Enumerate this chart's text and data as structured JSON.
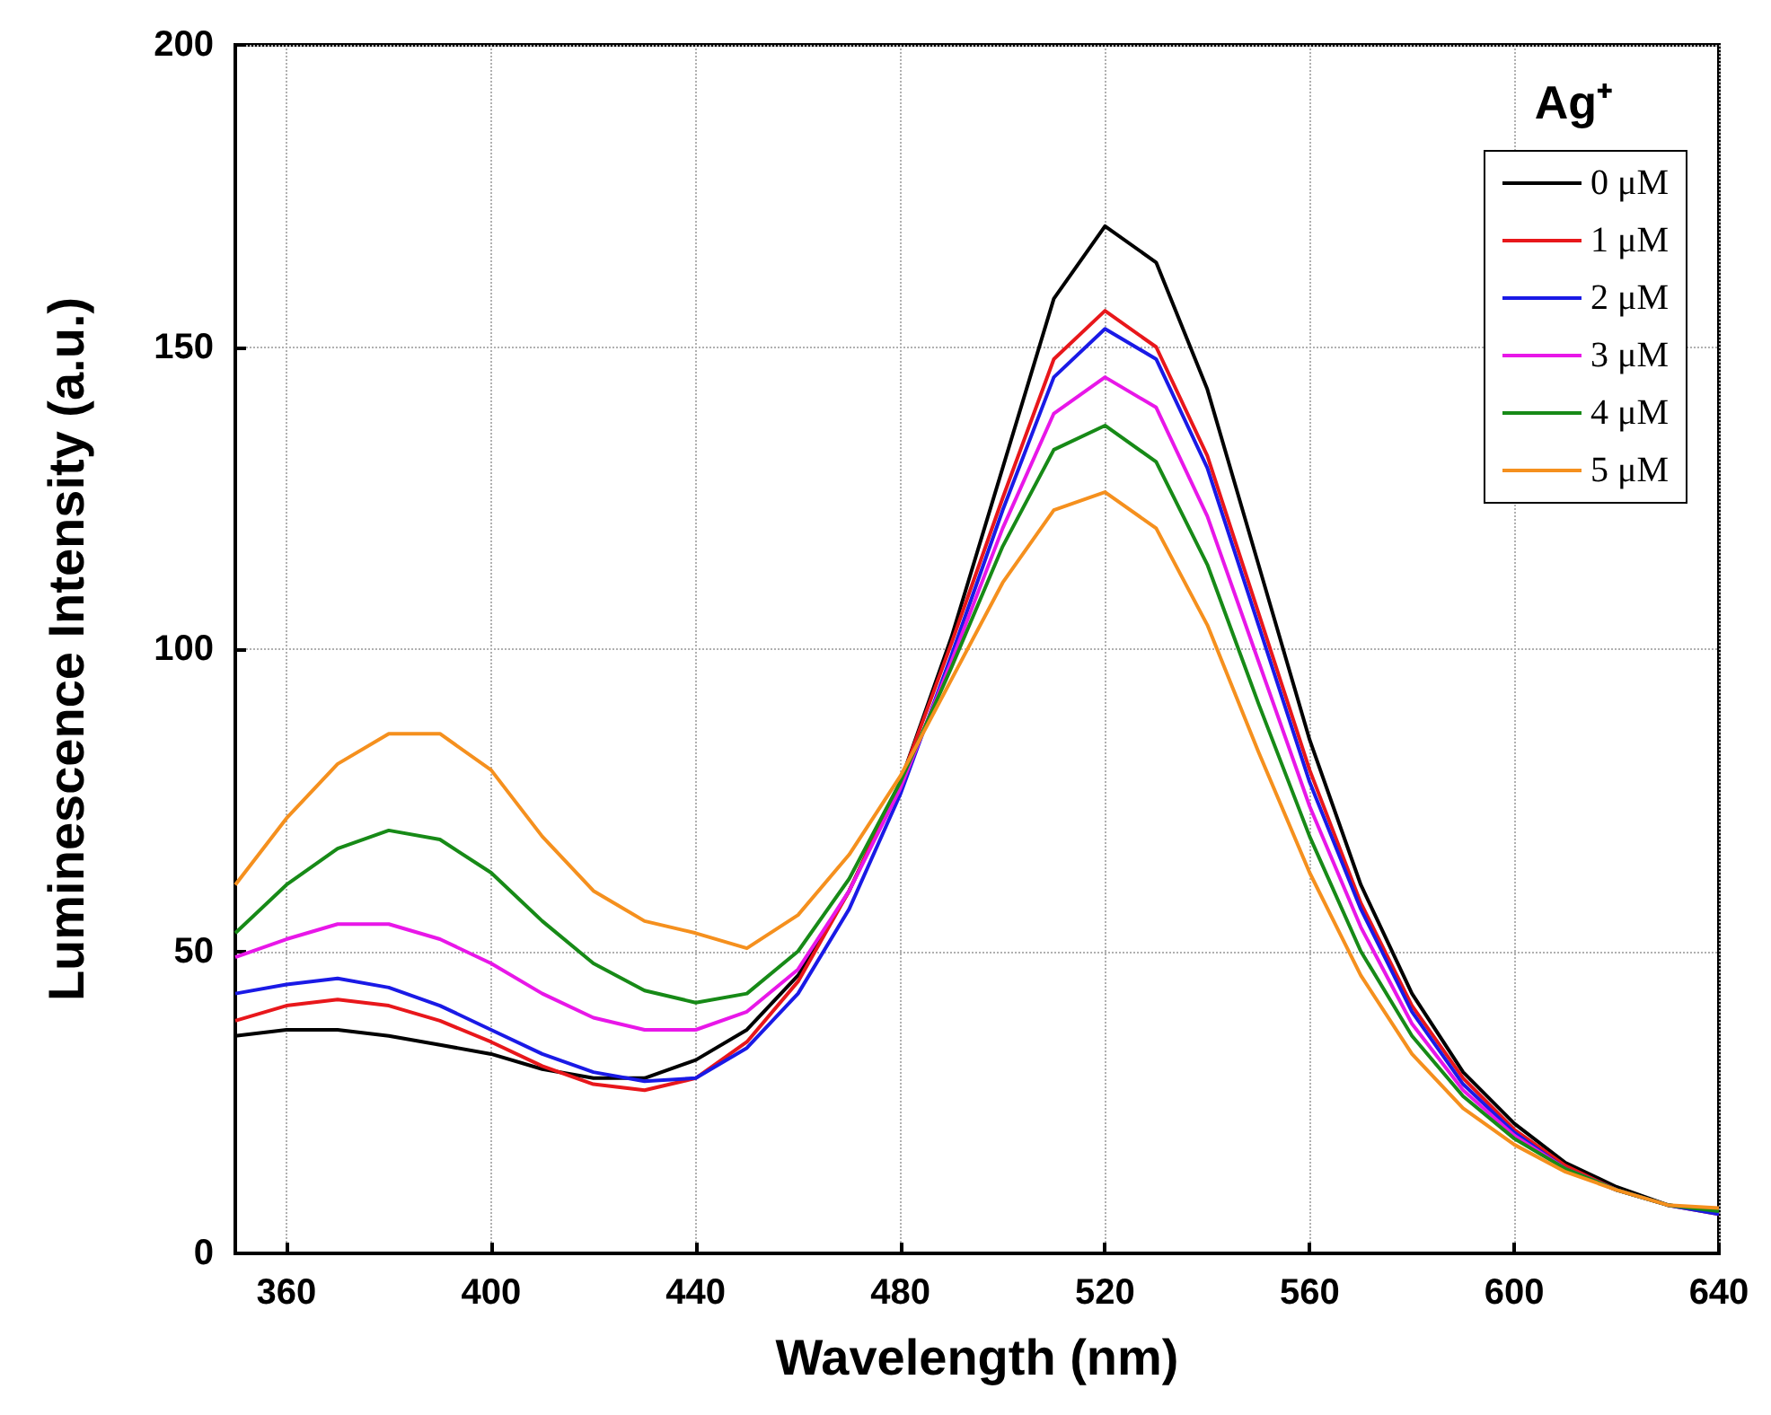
{
  "chart_data": {
    "type": "line",
    "xlabel": "Wavelength (nm)",
    "ylabel": "Luminescence Intensity (a.u.)",
    "legend_title": "Ag⁺",
    "x": [
      350,
      360,
      370,
      380,
      390,
      400,
      410,
      420,
      430,
      440,
      450,
      460,
      470,
      480,
      490,
      500,
      510,
      520,
      530,
      540,
      550,
      560,
      570,
      580,
      590,
      600,
      610,
      620,
      630,
      640
    ],
    "series": [
      {
        "name": "0 μM",
        "color": "#000000",
        "values": [
          36,
          37,
          37,
          36,
          34.5,
          33,
          30.5,
          29,
          29,
          32,
          37,
          46,
          60,
          78,
          102,
          130,
          158,
          170,
          164,
          143,
          114,
          85,
          61,
          43,
          30,
          21.5,
          15,
          11,
          8,
          7
        ]
      },
      {
        "name": "1 μM",
        "color": "#e8171b",
        "values": [
          38.5,
          41,
          42,
          41,
          38.5,
          35,
          31,
          28,
          27,
          29,
          35,
          45,
          60,
          78,
          101,
          125,
          148,
          156,
          150,
          132,
          106,
          80,
          58,
          41,
          29,
          20.5,
          14.5,
          10.5,
          8,
          6.5
        ]
      },
      {
        "name": "2 μM",
        "color": "#1a1ae6",
        "values": [
          43,
          44.5,
          45.5,
          44,
          41,
          37,
          33,
          30,
          28.5,
          29,
          34,
          43,
          57,
          76,
          99,
          123,
          145,
          153,
          148,
          130,
          104,
          78,
          57,
          40,
          28,
          20,
          14,
          10.5,
          8,
          6.5
        ]
      },
      {
        "name": "3 μM",
        "color": "#e817e8",
        "values": [
          49,
          52,
          54.5,
          54.5,
          52,
          48,
          43,
          39,
          37,
          37,
          40,
          47,
          60,
          77,
          98,
          120,
          139,
          145,
          140,
          122,
          98,
          74,
          54,
          38,
          27,
          19.5,
          14,
          10.5,
          null,
          null
        ]
      },
      {
        "name": "4 μM",
        "color": "#178a17",
        "values": [
          53,
          61,
          67,
          70,
          68.5,
          63,
          55,
          48,
          43.5,
          41.5,
          43,
          50,
          62,
          78,
          97,
          117,
          133,
          137,
          131,
          114,
          91,
          69,
          50,
          36,
          26,
          19,
          14,
          10.5,
          8,
          7
        ]
      },
      {
        "name": "5 μM",
        "color": "#f5901e",
        "values": [
          61,
          72,
          81,
          86,
          86,
          80,
          69,
          60,
          55,
          53,
          50.5,
          56,
          66,
          79,
          95,
          111,
          123,
          126,
          120,
          104,
          83,
          63,
          46,
          33,
          24,
          18,
          13.5,
          10.5,
          8,
          7.5
        ]
      }
    ],
    "xlim": [
      350,
      640
    ],
    "xticks": [
      360,
      400,
      440,
      480,
      520,
      560,
      600,
      640
    ],
    "ylim": [
      0,
      200
    ],
    "yticks": [
      0,
      50,
      100,
      150,
      200
    ],
    "grid": true,
    "legend": "top right",
    "line_style": "solid"
  }
}
